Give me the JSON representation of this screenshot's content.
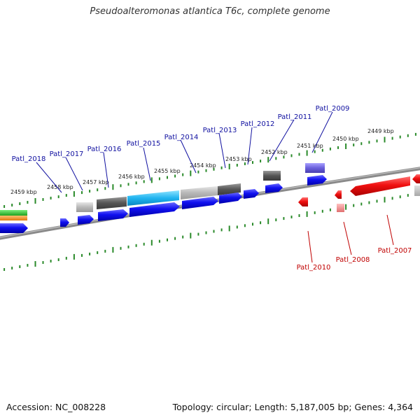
{
  "title": "Pseudoalteromonas atlantica T6c, complete genome",
  "footer": {
    "accession": "Accession: NC_008228",
    "summary": "Topology: circular; Length: 5,187,005 bp; Genes: 4,364"
  },
  "colors": {
    "forward_label": "#1010a0",
    "reverse_label": "#c00000",
    "cds_forward": "#0000ee",
    "cds_reverse": "#ee0000",
    "tick": "#2a8a2a",
    "backbone": "#7a7a7a"
  },
  "ruler_labels": [
    "2449 kbp",
    "2450 kbp",
    "2451 kbp",
    "2452 kbp",
    "2453 kbp",
    "2454 kbp",
    "2455 kbp",
    "2456 kbp",
    "2457 kbp",
    "2458 kbp",
    "2459 kbp"
  ],
  "genes_forward": [
    "Patl_2009",
    "Patl_2011",
    "Patl_2012",
    "Patl_2013",
    "Patl_2014",
    "Patl_2015",
    "Patl_2016",
    "Patl_2017",
    "Patl_2018"
  ],
  "genes_reverse": [
    "Patl_2007",
    "Patl_2008",
    "Patl_2010"
  ]
}
